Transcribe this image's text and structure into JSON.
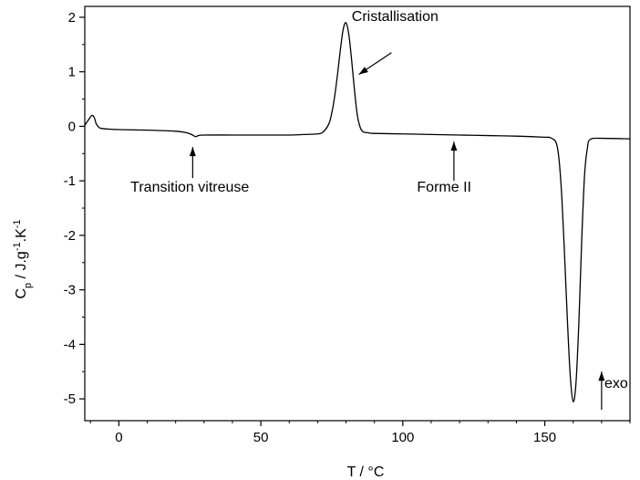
{
  "chart_data": {
    "type": "line",
    "title": "",
    "xlabel": "T / °C",
    "ylabel_main": "C",
    "ylabel_sub_p": "p",
    "ylabel_mid": " / J.g",
    "ylabel_sup_1": "-1",
    "ylabel_mid2": ".K",
    "ylabel_sup_2": "-1",
    "xlim": [
      -12,
      180
    ],
    "ylim": [
      -5.4,
      2.2
    ],
    "x_ticks": [
      0,
      50,
      100,
      150
    ],
    "y_ticks": [
      2,
      1,
      0,
      -1,
      -2,
      -3,
      -4,
      -5
    ],
    "x_tick_labels": [
      "0",
      "50",
      "100",
      "150"
    ],
    "y_tick_labels": [
      "2",
      "1",
      "0",
      "-1",
      "-2",
      "-3",
      "-4",
      "-5"
    ],
    "grid": false,
    "legend": "none",
    "series": [
      {
        "color": "#000000",
        "x": [
          -12,
          -10,
          -9.5,
          -9,
          -8.5,
          -8,
          -7,
          -6,
          -4,
          0,
          10,
          20,
          24,
          26,
          27,
          28,
          30,
          40,
          50,
          60,
          65,
          70,
          72,
          74,
          75,
          76,
          77,
          78,
          79,
          80,
          81,
          82,
          83,
          84,
          85,
          86,
          88,
          90,
          100,
          110,
          120,
          130,
          140,
          150,
          152,
          154,
          155,
          156,
          157,
          158,
          159,
          160,
          161,
          162,
          163,
          164,
          165,
          166,
          170,
          180
        ],
        "y": [
          0.02,
          0.17,
          0.2,
          0.19,
          0.14,
          0.05,
          -0.02,
          -0.04,
          -0.05,
          -0.06,
          -0.07,
          -0.09,
          -0.12,
          -0.16,
          -0.19,
          -0.17,
          -0.16,
          -0.16,
          -0.16,
          -0.16,
          -0.15,
          -0.14,
          -0.1,
          0.05,
          0.25,
          0.55,
          0.95,
          1.4,
          1.78,
          1.9,
          1.68,
          1.2,
          0.65,
          0.2,
          -0.02,
          -0.1,
          -0.12,
          -0.13,
          -0.14,
          -0.15,
          -0.16,
          -0.17,
          -0.18,
          -0.2,
          -0.21,
          -0.3,
          -0.6,
          -1.3,
          -2.4,
          -3.6,
          -4.6,
          -5.05,
          -4.7,
          -3.6,
          -2.1,
          -0.9,
          -0.4,
          -0.24,
          -0.22,
          -0.23
        ]
      }
    ],
    "annotations": [
      {
        "text": "Cristallisation",
        "tx": 82,
        "ty": 1.93
      },
      {
        "text": "Transition vitreuse",
        "tx": 25,
        "ty": -1.2
      },
      {
        "text": "Forme II",
        "tx": 105,
        "ty": -1.2
      },
      {
        "text": "exo",
        "tx": 171,
        "ty": -4.8
      }
    ]
  }
}
